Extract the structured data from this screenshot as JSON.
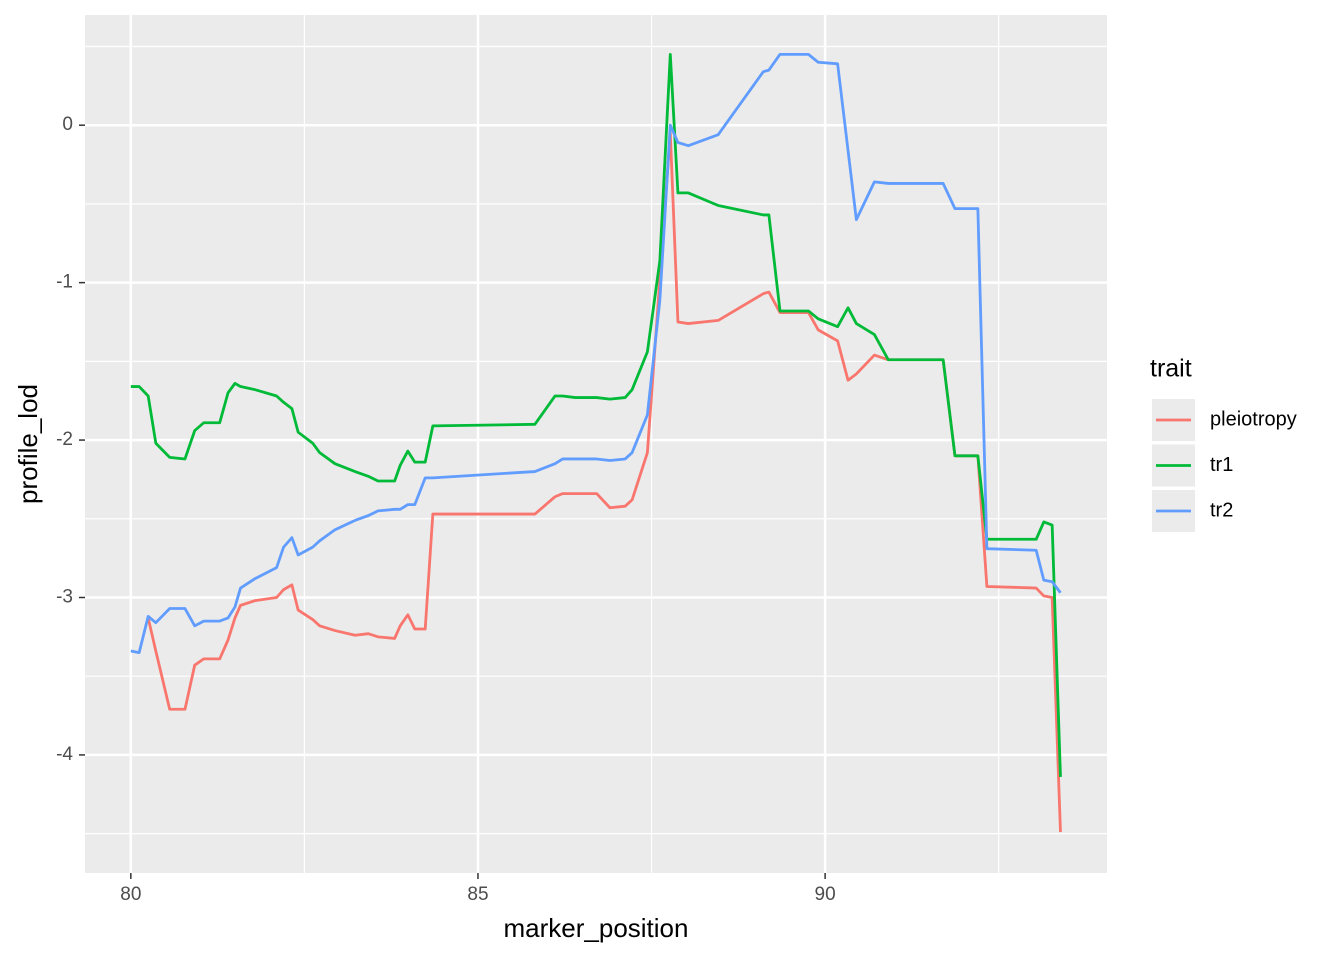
{
  "chart_data": {
    "type": "line",
    "x_label": "marker_position",
    "y_label": "profile_lod",
    "legend_title": "trait",
    "legend_position": "right",
    "grid": true,
    "xlim": [
      79.34,
      94.06
    ],
    "ylim": [
      -4.75,
      0.7
    ],
    "xticks": [
      80,
      85,
      90
    ],
    "yticks": [
      -4,
      -3,
      -2,
      -1,
      0
    ],
    "x_minor_breaks": [
      82.5,
      87.5,
      92.5
    ],
    "y_minor_breaks": [
      -4.5,
      -3.5,
      -2.5,
      -1.5,
      -0.5,
      0.5
    ],
    "x": [
      80.0,
      80.12,
      80.25,
      80.36,
      80.56,
      80.78,
      80.92,
      81.05,
      81.28,
      81.4,
      81.5,
      81.58,
      81.79,
      82.1,
      82.2,
      82.32,
      82.41,
      82.62,
      82.72,
      82.94,
      83.23,
      83.42,
      83.56,
      83.8,
      83.88,
      83.99,
      84.09,
      84.24,
      84.35,
      85.82,
      86.11,
      86.22,
      86.4,
      86.71,
      86.9,
      87.12,
      87.22,
      87.44,
      87.62,
      87.77,
      87.88,
      88.03,
      88.46,
      89.11,
      89.19,
      89.35,
      89.76,
      89.9,
      90.18,
      90.33,
      90.45,
      90.71,
      90.91,
      91.7,
      91.87,
      92.2,
      92.33,
      93.04,
      93.15,
      93.27,
      93.39
    ],
    "series": [
      {
        "name": "pleiotropy",
        "color": "#f8766d",
        "values": [
          null,
          null,
          -3.13,
          -3.34,
          -3.71,
          -3.71,
          -3.43,
          -3.39,
          -3.39,
          -3.27,
          -3.13,
          -3.05,
          -3.02,
          -3.0,
          -2.95,
          -2.92,
          -3.08,
          -3.14,
          -3.18,
          -3.21,
          -3.24,
          -3.23,
          -3.25,
          -3.26,
          -3.18,
          -3.11,
          -3.2,
          -3.2,
          -2.47,
          -2.47,
          -2.36,
          -2.34,
          -2.34,
          -2.34,
          -2.43,
          -2.42,
          -2.38,
          -2.08,
          -0.98,
          -0.05,
          -1.25,
          -1.26,
          -1.24,
          -1.07,
          -1.06,
          -1.19,
          -1.19,
          -1.3,
          -1.37,
          -1.62,
          -1.58,
          -1.46,
          -1.49,
          -1.49,
          -2.1,
          -2.1,
          -2.93,
          -2.94,
          -2.99,
          -3.0,
          -4.49
        ]
      },
      {
        "name": "tr1",
        "color": "#00ba38",
        "values": [
          -1.66,
          -1.66,
          -1.72,
          -2.02,
          -2.11,
          -2.12,
          -1.94,
          -1.89,
          -1.89,
          -1.7,
          -1.64,
          -1.66,
          -1.68,
          -1.72,
          -1.76,
          -1.8,
          -1.95,
          -2.02,
          -2.08,
          -2.15,
          -2.2,
          -2.23,
          -2.26,
          -2.26,
          -2.16,
          -2.07,
          -2.14,
          -2.14,
          -1.91,
          -1.9,
          -1.72,
          -1.72,
          -1.73,
          -1.73,
          -1.74,
          -1.73,
          -1.68,
          -1.44,
          -0.86,
          0.45,
          -0.43,
          -0.43,
          -0.51,
          -0.57,
          -0.57,
          -1.18,
          -1.18,
          -1.23,
          -1.28,
          -1.16,
          -1.26,
          -1.33,
          -1.49,
          -1.49,
          -2.1,
          -2.1,
          -2.63,
          -2.63,
          -2.52,
          -2.54,
          -4.14
        ]
      },
      {
        "name": "tr2",
        "color": "#619cff",
        "values": [
          -3.34,
          -3.35,
          -3.12,
          -3.16,
          -3.07,
          -3.07,
          -3.18,
          -3.15,
          -3.15,
          -3.13,
          -3.06,
          -2.94,
          -2.88,
          -2.81,
          -2.68,
          -2.62,
          -2.73,
          -2.68,
          -2.64,
          -2.57,
          -2.51,
          -2.48,
          -2.45,
          -2.44,
          -2.44,
          -2.41,
          -2.41,
          -2.24,
          -2.24,
          -2.2,
          -2.15,
          -2.12,
          -2.12,
          -2.12,
          -2.13,
          -2.12,
          -2.08,
          -1.84,
          -1.11,
          0.0,
          -0.11,
          -0.13,
          -0.06,
          0.34,
          0.35,
          0.45,
          0.45,
          0.4,
          0.39,
          -0.16,
          -0.6,
          -0.36,
          -0.37,
          -0.37,
          -0.53,
          -0.53,
          -2.69,
          -2.7,
          -2.89,
          -2.9,
          -2.97
        ]
      }
    ]
  }
}
